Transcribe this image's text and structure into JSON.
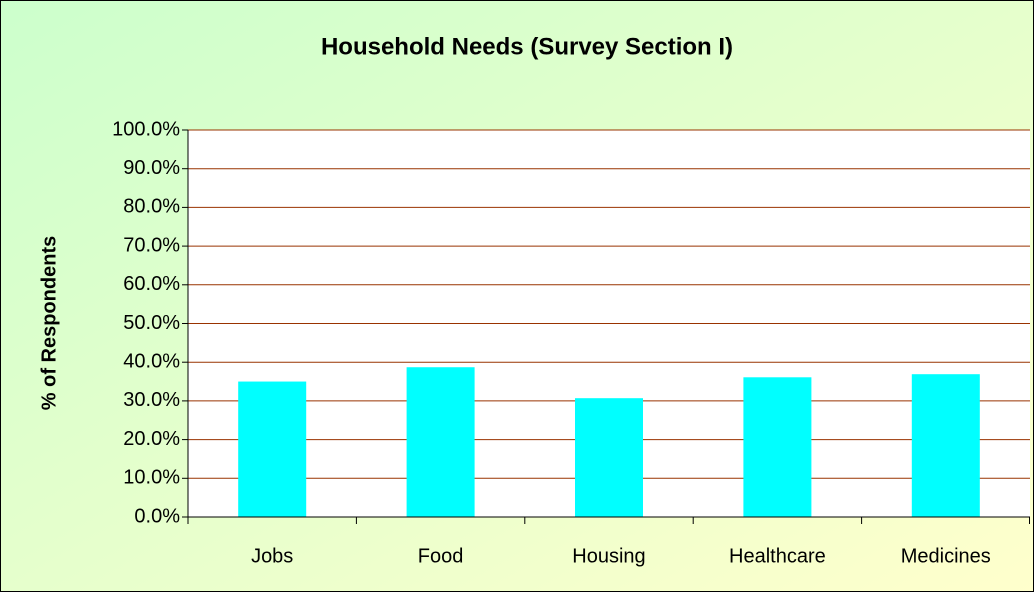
{
  "chart_data": {
    "type": "bar",
    "title": "Household Needs (Survey Section I)",
    "ylabel": "% of Respondents",
    "categories": [
      "Jobs",
      "Food",
      "Housing",
      "Healthcare",
      "Medicines"
    ],
    "values": [
      35.0,
      38.7,
      30.7,
      36.1,
      36.9
    ],
    "color": "#00ffff",
    "ylim": [
      0,
      100
    ],
    "yticks": [
      {
        "value": 0,
        "label": "0.0%"
      },
      {
        "value": 10,
        "label": "10.0%"
      },
      {
        "value": 20,
        "label": "20.0%"
      },
      {
        "value": 30,
        "label": "30.0%"
      },
      {
        "value": 40,
        "label": "40.0%"
      },
      {
        "value": 50,
        "label": "50.0%"
      },
      {
        "value": 60,
        "label": "60.0%"
      },
      {
        "value": 70,
        "label": "70.0%"
      },
      {
        "value": 80,
        "label": "80.0%"
      },
      {
        "value": 90,
        "label": "90.0%"
      },
      {
        "value": 100,
        "label": "100.0%"
      }
    ],
    "grid": true
  }
}
